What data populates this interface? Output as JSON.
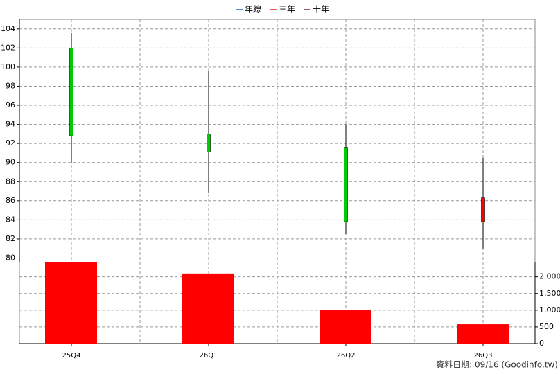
{
  "chart_data": {
    "type": "candlestick",
    "legend": [
      {
        "name": "年線",
        "color": "#1f5fd6"
      },
      {
        "name": "三年",
        "color": "#e02020"
      },
      {
        "name": "十年",
        "color": "#8a1050"
      }
    ],
    "categories": [
      "25Q4",
      "26Q1",
      "26Q2",
      "26Q3"
    ],
    "open": [
      102.0,
      93.0,
      91.6,
      83.8
    ],
    "high": [
      103.6,
      99.6,
      94.0,
      90.5
    ],
    "low": [
      90.0,
      86.8,
      82.5,
      81.0
    ],
    "close": [
      92.8,
      91.1,
      83.8,
      86.3
    ],
    "up_color": "#ff0000",
    "down_color": "#00cc00",
    "ylim": [
      79.6,
      105
    ],
    "yticks": [
      80,
      82,
      84,
      86,
      88,
      90,
      92,
      94,
      96,
      98,
      100,
      102,
      104
    ],
    "volume": {
      "values": [
        2440,
        2100,
        1000,
        580
      ],
      "color": "#ff0000",
      "axis": "y2"
    },
    "y2lim": [
      0,
      2450
    ],
    "y2ticks": [
      0,
      {
        "value": 500,
        "label": "500"
      },
      {
        "value": 1000,
        "label": "1,000"
      },
      {
        "value": 1500,
        "label": "1,500"
      },
      {
        "value": 2000,
        "label": "2,000"
      }
    ],
    "grid": true,
    "footnote": "資料日期: 09/16  (Goodinfo.tw)"
  }
}
